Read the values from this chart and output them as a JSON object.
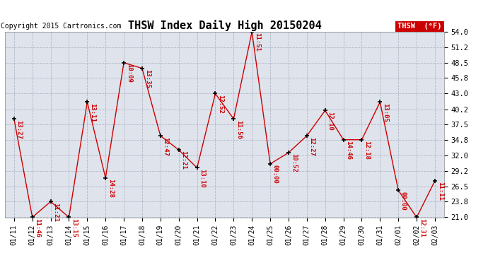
{
  "title": "THSW Index Daily High 20150204",
  "copyright": "Copyright 2015 Cartronics.com",
  "legend_label": "THSW  (°F)",
  "dates": [
    "01/11",
    "01/12",
    "01/13",
    "01/14",
    "01/15",
    "01/16",
    "01/17",
    "01/18",
    "01/19",
    "01/20",
    "01/21",
    "01/22",
    "01/23",
    "01/24",
    "01/25",
    "01/26",
    "01/27",
    "01/28",
    "01/29",
    "01/30",
    "01/31",
    "02/01",
    "02/02",
    "02/03"
  ],
  "values": [
    38.5,
    21.0,
    23.8,
    21.0,
    41.5,
    28.0,
    48.5,
    47.5,
    35.5,
    33.0,
    29.8,
    43.0,
    38.5,
    54.0,
    30.5,
    32.5,
    35.5,
    40.0,
    34.8,
    34.8,
    41.5,
    25.8,
    21.0,
    27.5
  ],
  "times": [
    "13:27",
    "11:46",
    "11:21",
    "13:15",
    "13:11",
    "14:28",
    "10:09",
    "13:35",
    "12:47",
    "12:21",
    "13:10",
    "12:52",
    "11:56",
    "11:51",
    "00:00",
    "10:52",
    "12:27",
    "12:10",
    "14:46",
    "12:18",
    "13:05",
    "00:00",
    "12:31",
    "11:11"
  ],
  "ylim_min": 21.0,
  "ylim_max": 54.0,
  "yticks": [
    21.0,
    23.8,
    26.5,
    29.2,
    32.0,
    34.8,
    37.5,
    40.2,
    43.0,
    45.8,
    48.5,
    51.2,
    54.0
  ],
  "line_color": "#cc0000",
  "marker_color": "#000000",
  "bg_color": "#ffffff",
  "plot_bg_color": "#dfe3ec",
  "grid_color": "#b0b8c8",
  "title_color": "#000000",
  "legend_bg": "#cc0000",
  "legend_text_color": "#ffffff",
  "annotation_color": "#cc0000",
  "annotation_fontsize": 6.5,
  "title_fontsize": 11,
  "copyright_fontsize": 7,
  "tick_fontsize": 7,
  "ytick_fontsize": 7.5
}
